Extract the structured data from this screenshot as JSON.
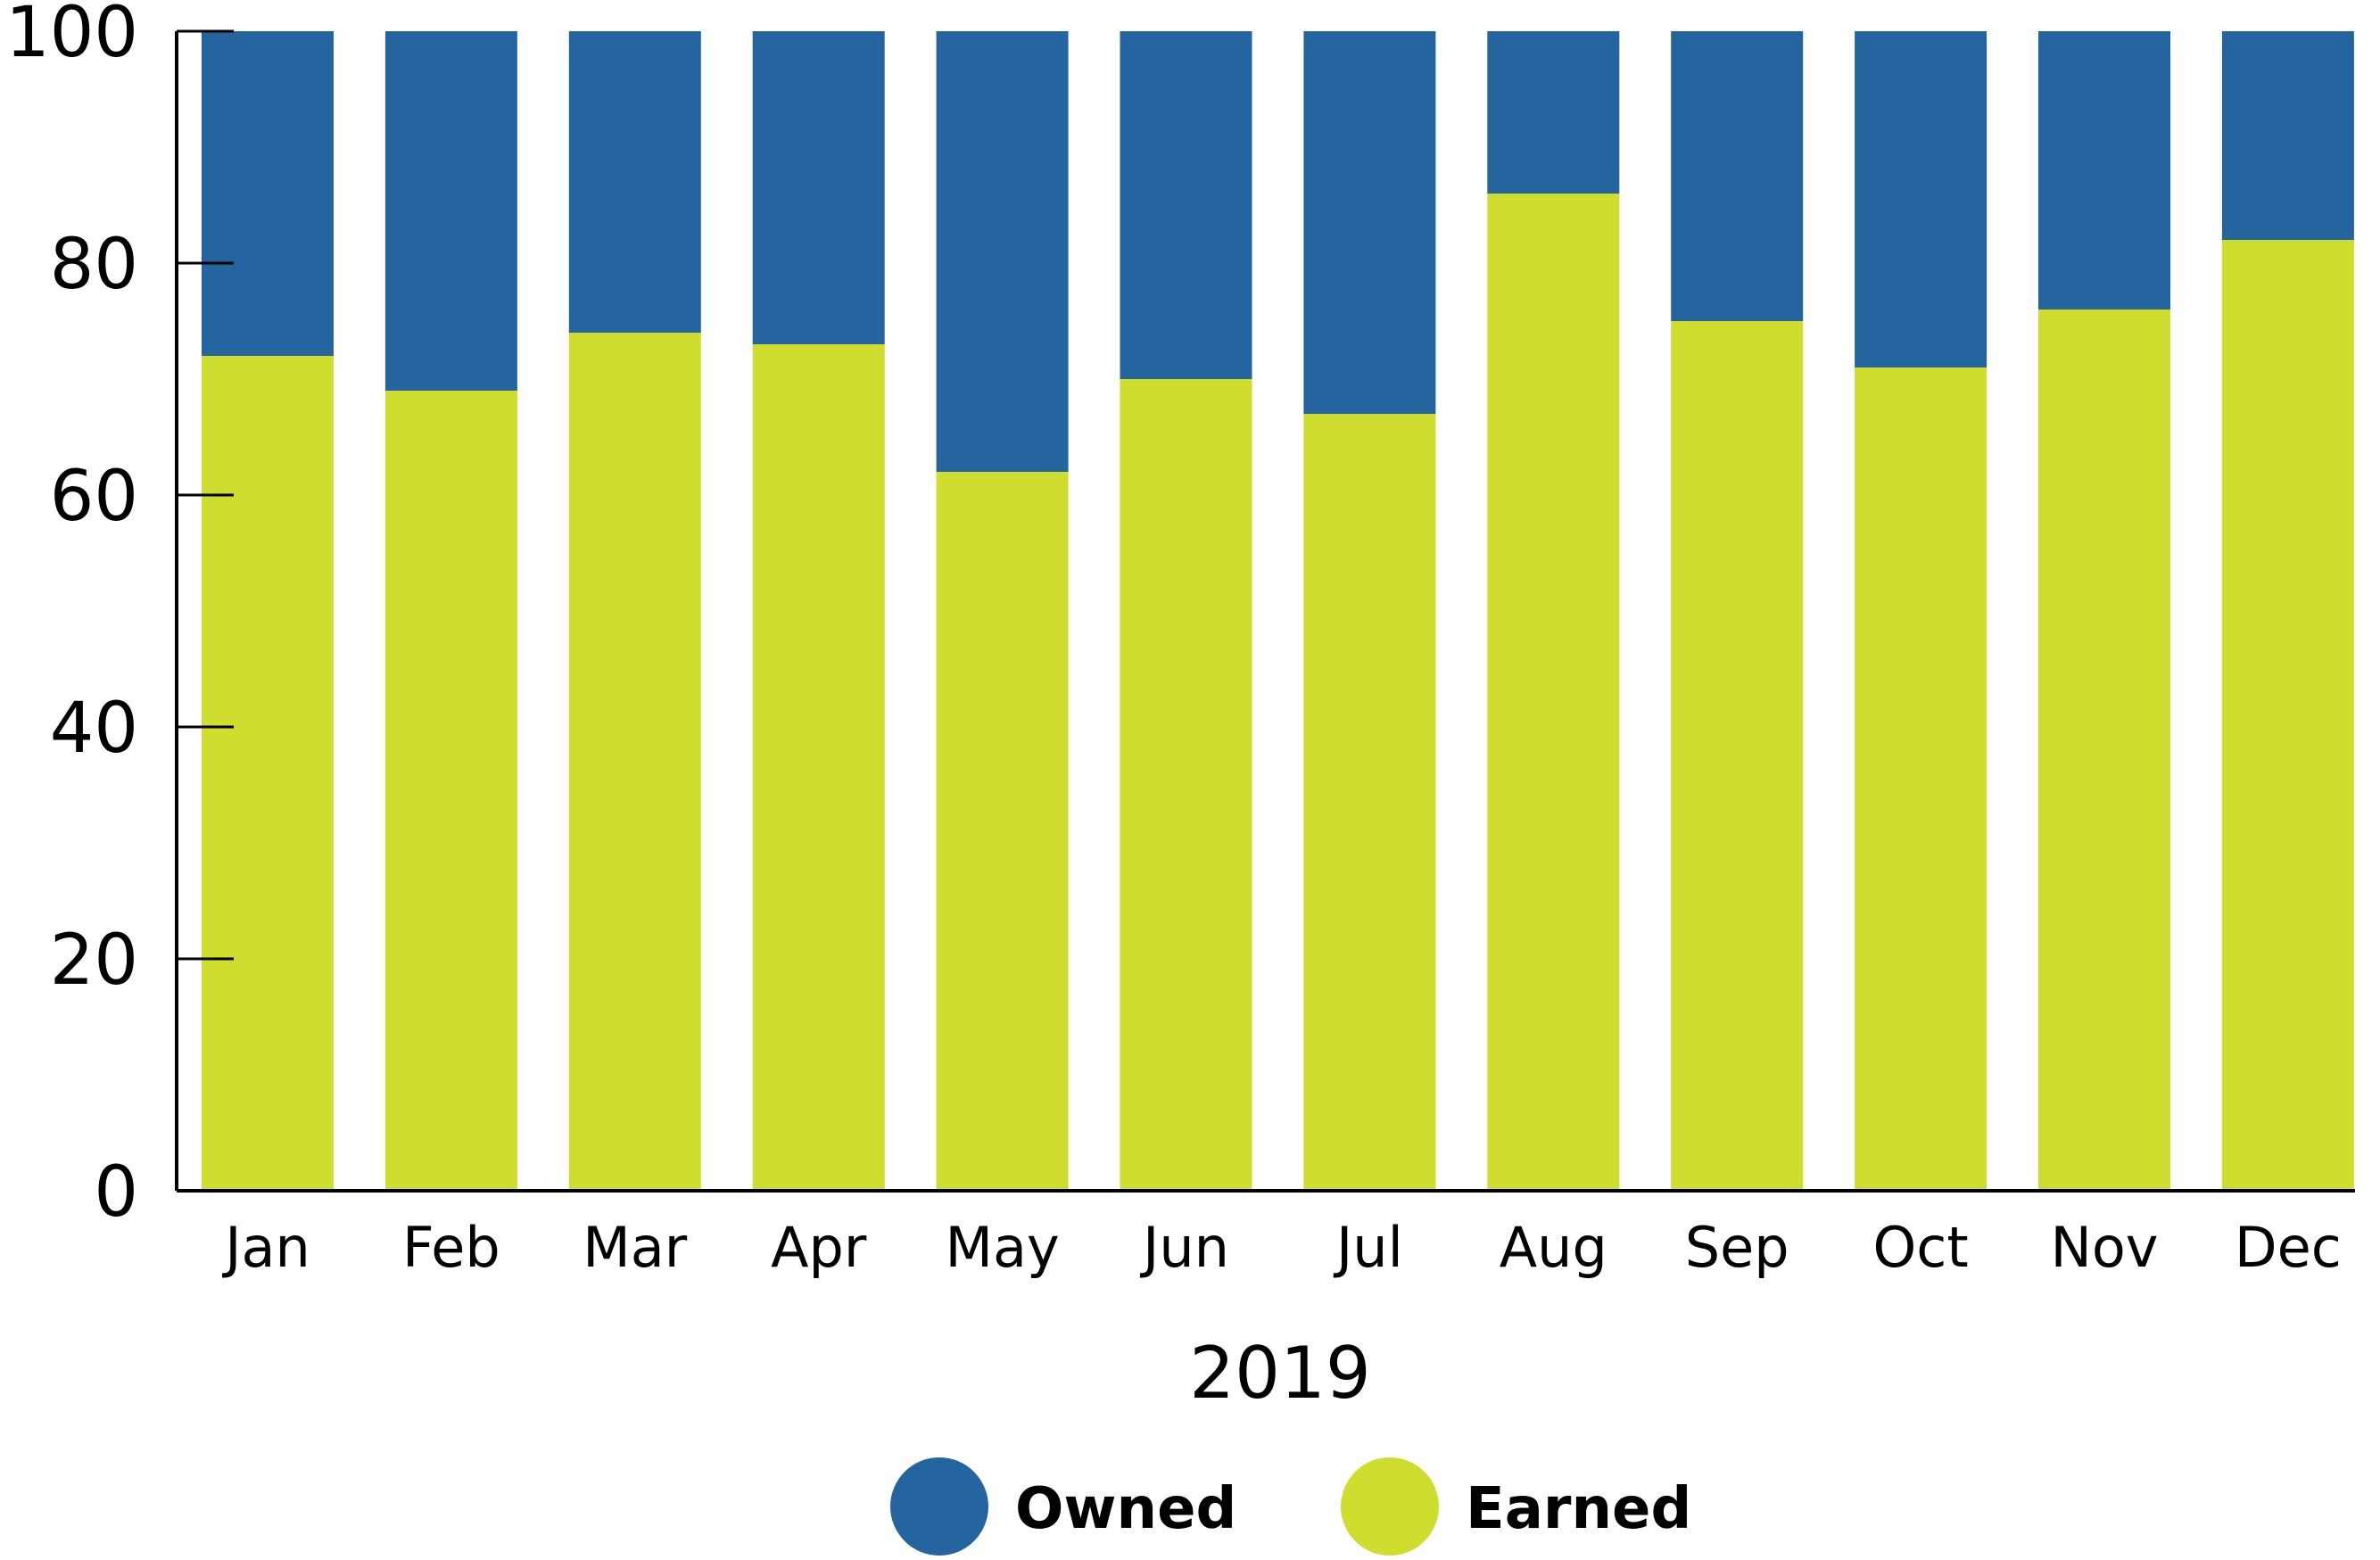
{
  "colors": {
    "owned": "#25659f",
    "earned": "#cfdd2e",
    "axis": "#000000",
    "background": "#ffffff"
  },
  "chart_data": {
    "type": "bar",
    "stacked": true,
    "categories": [
      "Jan",
      "Feb",
      "Mar",
      "Apr",
      "May",
      "Jun",
      "Jul",
      "Aug",
      "Sep",
      "Oct",
      "Nov",
      "Dec"
    ],
    "series": [
      {
        "name": "Earned",
        "color": "#cfdd2e",
        "values": [
          72,
          69,
          74,
          73,
          62,
          70,
          67,
          86,
          75,
          71,
          76,
          82
        ]
      },
      {
        "name": "Owned",
        "color": "#25659f",
        "values": [
          28,
          31,
          26,
          27,
          38,
          30,
          33,
          14,
          25,
          29,
          24,
          18
        ]
      }
    ],
    "xlabel": "2019",
    "ylabel": "",
    "ylim": [
      0,
      100
    ],
    "yticks": [
      0,
      20,
      40,
      60,
      80,
      100
    ],
    "grid": false,
    "legend": {
      "placement": "bottom-center",
      "entries": [
        {
          "label": "Owned",
          "color": "#25659f"
        },
        {
          "label": "Earned",
          "color": "#cfdd2e"
        }
      ]
    }
  }
}
